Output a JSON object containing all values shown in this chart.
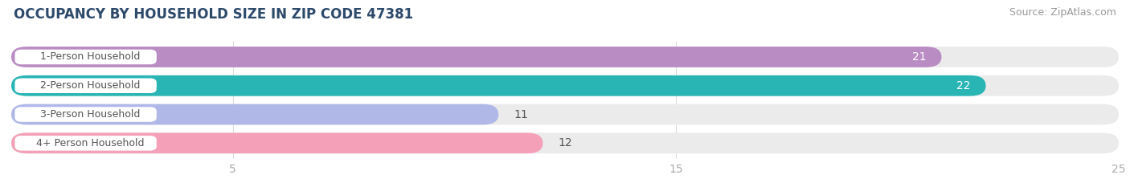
{
  "title": "OCCUPANCY BY HOUSEHOLD SIZE IN ZIP CODE 47381",
  "source": "Source: ZipAtlas.com",
  "categories": [
    "1-Person Household",
    "2-Person Household",
    "3-Person Household",
    "4+ Person Household"
  ],
  "values": [
    21,
    22,
    11,
    12
  ],
  "bar_colors": [
    "#b98cc4",
    "#2ab5b5",
    "#b0b8e8",
    "#f4a0b8"
  ],
  "bar_bg_color": "#ebebeb",
  "value_label_inside_color": [
    "#ffffff",
    "#ffffff",
    "#555555",
    "#555555"
  ],
  "value_label_outside": [
    false,
    false,
    true,
    true
  ],
  "xlim": [
    0,
    25
  ],
  "xticks": [
    5,
    15,
    25
  ],
  "title_fontsize": 12,
  "source_fontsize": 9,
  "tick_fontsize": 10,
  "bar_label_fontsize": 10,
  "category_fontsize": 9,
  "background_color": "#ffffff",
  "title_color": "#2d4a6b",
  "tick_color": "#aaaaaa",
  "grid_color": "#dddddd"
}
